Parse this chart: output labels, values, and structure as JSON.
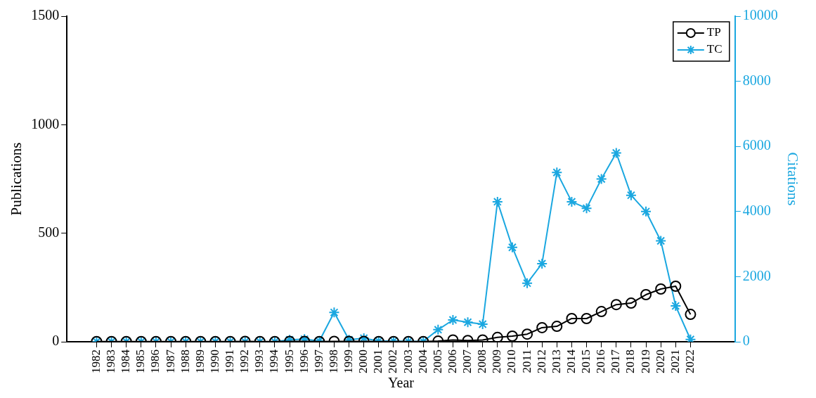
{
  "chart_data": {
    "type": "line",
    "xlabel": "Year",
    "ylabel": "Publications",
    "y2label": "Citations",
    "x": [
      1982,
      1983,
      1984,
      1985,
      1986,
      1987,
      1988,
      1989,
      1990,
      1991,
      1992,
      1993,
      1994,
      1995,
      1996,
      1997,
      1998,
      1999,
      2000,
      2001,
      2002,
      2003,
      2004,
      2005,
      2006,
      2007,
      2008,
      2009,
      2010,
      2011,
      2012,
      2013,
      2014,
      2015,
      2016,
      2017,
      2018,
      2019,
      2020,
      2021,
      2022
    ],
    "xlim": [
      1980,
      2025
    ],
    "xticks": [
      1982,
      1983,
      1984,
      1985,
      1986,
      1987,
      1988,
      1989,
      1990,
      1991,
      1992,
      1993,
      1994,
      1995,
      1996,
      1997,
      1998,
      1999,
      2000,
      2001,
      2002,
      2003,
      2004,
      2005,
      2006,
      2007,
      2008,
      2009,
      2010,
      2011,
      2012,
      2013,
      2014,
      2015,
      2016,
      2017,
      2018,
      2019,
      2020,
      2021,
      2022
    ],
    "ylim": [
      0,
      1500
    ],
    "yticks": [
      0,
      500,
      1000,
      1500
    ],
    "y2lim": [
      0,
      10000
    ],
    "y2ticks": [
      0,
      2000,
      4000,
      6000,
      8000,
      10000
    ],
    "legend": "top right",
    "grid": false,
    "line_style": "solid",
    "series": [
      {
        "name": "TP",
        "color": "#000000",
        "marker": "circle",
        "values": [
          1,
          1,
          1,
          1,
          1,
          1,
          1,
          1,
          1,
          1,
          2,
          1,
          1,
          2,
          2,
          1,
          2,
          2,
          2,
          1,
          1,
          1,
          1,
          3,
          8,
          6,
          8,
          20,
          26,
          35,
          65,
          71,
          107,
          107,
          139,
          171,
          178,
          217,
          243,
          256,
          126
        ]
      },
      {
        "name": "TC",
        "color": "#1aa7e0",
        "marker": "cross",
        "axis": "y2",
        "values": [
          0,
          0,
          0,
          0,
          0,
          0,
          0,
          0,
          0,
          0,
          0,
          0,
          0,
          60,
          80,
          20,
          900,
          60,
          110,
          20,
          20,
          10,
          10,
          370,
          670,
          600,
          540,
          4300,
          2900,
          1800,
          2400,
          5200,
          4300,
          4100,
          5000,
          5800,
          4500,
          4000,
          3100,
          1100,
          70
        ]
      }
    ]
  }
}
